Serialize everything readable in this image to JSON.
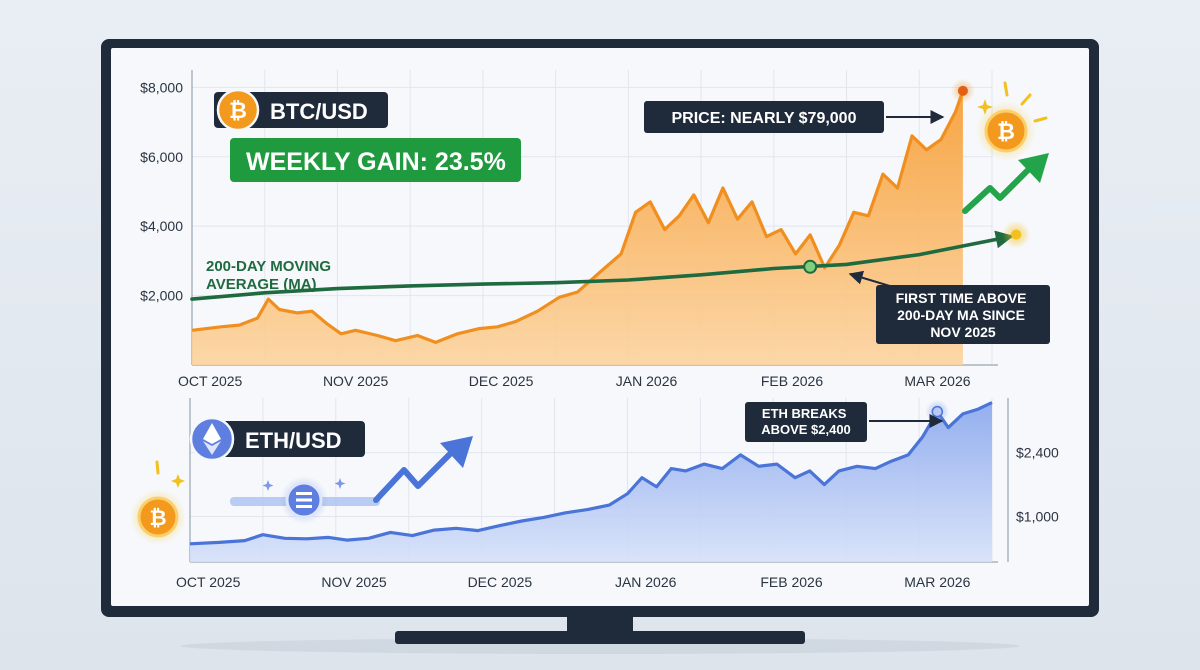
{
  "colors": {
    "btc_line": "#f08f1f",
    "btc_fill": "#f9b360",
    "ma_line": "#1f6a3f",
    "eth_line": "#4a74d8",
    "eth_fill": "#a9c0f2",
    "dark_label": "#1f2a3a",
    "gain_green": "#1f9a3e",
    "bitcoin_orange": "#f39a1e",
    "eth_blue": "#5f7fe0"
  },
  "icons": [
    "bitcoin-coin-icon",
    "ethereum-icon",
    "trend-up-arrow-icon",
    "sparkle-icon"
  ],
  "chart_data": [
    {
      "type": "area",
      "title": "BTC/USD",
      "y_ticks": [
        "$8,000",
        "$6,000",
        "$4,000",
        "$2,000"
      ],
      "y_tick_values": [
        8000,
        6000,
        4000,
        2000
      ],
      "x_ticks": [
        "OCT 2025",
        "NOV 2025",
        "DEC 2025",
        "JAN 2026",
        "FEB 2026",
        "MAR 2026"
      ],
      "x_tick_positions": [
        0.5,
        4.5,
        8.5,
        12.5,
        16.5,
        20.5
      ],
      "ylim": [
        0,
        8500
      ],
      "xlim": [
        0,
        22
      ],
      "grid": true,
      "series": [
        {
          "values": [
            [
              0,
              1000
            ],
            [
              0.8,
              1100
            ],
            [
              1.3,
              1150
            ],
            [
              1.8,
              1350
            ],
            [
              2.1,
              1900
            ],
            [
              2.4,
              1600
            ],
            [
              2.9,
              1500
            ],
            [
              3.3,
              1550
            ],
            [
              3.7,
              1200
            ],
            [
              4.1,
              900
            ],
            [
              4.5,
              1000
            ],
            [
              5.1,
              850
            ],
            [
              5.6,
              700
            ],
            [
              6.2,
              850
            ],
            [
              6.7,
              650
            ],
            [
              7.3,
              900
            ],
            [
              7.9,
              1050
            ],
            [
              8.4,
              1100
            ],
            [
              8.9,
              1250
            ],
            [
              9.5,
              1550
            ],
            [
              10.1,
              1950
            ],
            [
              10.6,
              2100
            ],
            [
              11.3,
              2750
            ],
            [
              11.8,
              3200
            ],
            [
              12.2,
              4400
            ],
            [
              12.6,
              4700
            ],
            [
              13.0,
              3900
            ],
            [
              13.4,
              4300
            ],
            [
              13.8,
              4900
            ],
            [
              14.2,
              4100
            ],
            [
              14.6,
              5100
            ],
            [
              15.0,
              4200
            ],
            [
              15.4,
              4700
            ],
            [
              15.8,
              3700
            ],
            [
              16.2,
              3900
            ],
            [
              16.6,
              3200
            ],
            [
              17.0,
              3750
            ],
            [
              17.4,
              2800
            ],
            [
              17.8,
              3450
            ],
            [
              18.2,
              4400
            ],
            [
              18.6,
              4300
            ],
            [
              19.0,
              5500
            ],
            [
              19.4,
              5100
            ],
            [
              19.8,
              6600
            ],
            [
              20.2,
              6200
            ],
            [
              20.6,
              6500
            ],
            [
              21.0,
              7300
            ],
            [
              21.2,
              7900
            ]
          ]
        },
        {
          "name": "200-DAY MOVING AVERAGE (MA)",
          "values": [
            [
              0,
              1900
            ],
            [
              2,
              2080
            ],
            [
              4,
              2200
            ],
            [
              6,
              2280
            ],
            [
              8,
              2330
            ],
            [
              10,
              2370
            ],
            [
              12,
              2450
            ],
            [
              14,
              2600
            ],
            [
              16,
              2780
            ],
            [
              18,
              2900
            ],
            [
              20,
              3180
            ],
            [
              22.5,
              3700
            ]
          ]
        }
      ],
      "annotations": {
        "weekly_gain": "WEEKLY GAIN: 23.5%",
        "price_callout": "PRICE: NEARLY $79,000",
        "ma_cross_callout": [
          "FIRST TIME ABOVE",
          "200-DAY MA SINCE",
          "NOV 2025"
        ]
      }
    },
    {
      "type": "area",
      "title": "ETH/USD",
      "y_ticks": [
        "$2,400",
        "$1,000"
      ],
      "y_tick_values": [
        2400,
        1000
      ],
      "x_ticks": [
        "OCT 2025",
        "NOV 2025",
        "DEC 2025",
        "JAN 2026",
        "FEB 2026",
        "MAR 2026"
      ],
      "x_tick_positions": [
        0.5,
        4.5,
        8.5,
        12.5,
        16.5,
        20.5
      ],
      "ylim": [
        0,
        3600
      ],
      "xlim": [
        0,
        22
      ],
      "grid": true,
      "series": [
        {
          "values": [
            [
              0,
              400
            ],
            [
              0.8,
              430
            ],
            [
              1.5,
              470
            ],
            [
              2.0,
              600
            ],
            [
              2.6,
              520
            ],
            [
              3.2,
              510
            ],
            [
              3.8,
              540
            ],
            [
              4.3,
              480
            ],
            [
              4.9,
              520
            ],
            [
              5.5,
              650
            ],
            [
              6.1,
              580
            ],
            [
              6.7,
              700
            ],
            [
              7.3,
              740
            ],
            [
              7.9,
              690
            ],
            [
              8.5,
              800
            ],
            [
              9.1,
              900
            ],
            [
              9.7,
              980
            ],
            [
              10.3,
              1080
            ],
            [
              10.9,
              1150
            ],
            [
              11.5,
              1250
            ],
            [
              12.0,
              1500
            ],
            [
              12.4,
              1850
            ],
            [
              12.8,
              1650
            ],
            [
              13.2,
              2050
            ],
            [
              13.6,
              2000
            ],
            [
              14.1,
              2150
            ],
            [
              14.6,
              2050
            ],
            [
              15.1,
              2350
            ],
            [
              15.6,
              2100
            ],
            [
              16.1,
              2150
            ],
            [
              16.6,
              1850
            ],
            [
              17.0,
              2000
            ],
            [
              17.4,
              1700
            ],
            [
              17.8,
              2000
            ],
            [
              18.3,
              2100
            ],
            [
              18.8,
              2050
            ],
            [
              19.2,
              2200
            ],
            [
              19.7,
              2350
            ],
            [
              20.1,
              2750
            ],
            [
              20.5,
              3300
            ],
            [
              20.8,
              2950
            ],
            [
              21.2,
              3250
            ],
            [
              21.6,
              3350
            ],
            [
              22.0,
              3500
            ]
          ]
        }
      ],
      "annotations": {
        "eth_breaks_callout": [
          "ETH BREAKS",
          "ABOVE $2,400"
        ]
      }
    }
  ]
}
